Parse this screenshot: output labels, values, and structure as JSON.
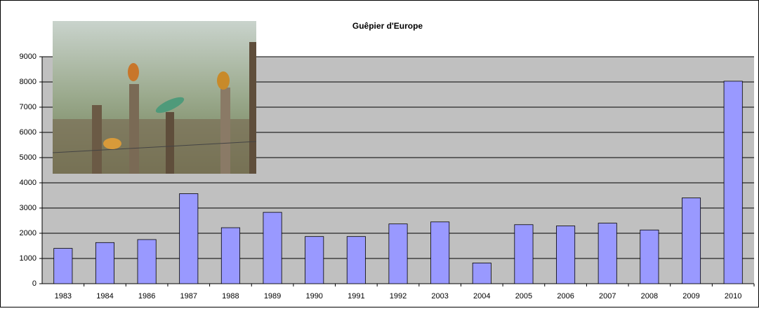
{
  "chart_data": {
    "type": "bar",
    "title": "Guêpier d'Europe",
    "categories": [
      "1983",
      "1984",
      "1986",
      "1987",
      "1988",
      "1989",
      "1990",
      "1991",
      "1992",
      "2003",
      "2004",
      "2005",
      "2006",
      "2007",
      "2008",
      "2009",
      "2010"
    ],
    "values": [
      1400,
      1630,
      1750,
      3570,
      2220,
      2830,
      1870,
      1870,
      2370,
      2450,
      820,
      2340,
      2290,
      2400,
      2130,
      3400,
      8030
    ],
    "color": "#9999ff",
    "ylim": [
      0,
      9000
    ],
    "yticks": [
      0,
      1000,
      2000,
      3000,
      4000,
      5000,
      6000,
      7000,
      8000,
      9000
    ],
    "grid": true
  }
}
